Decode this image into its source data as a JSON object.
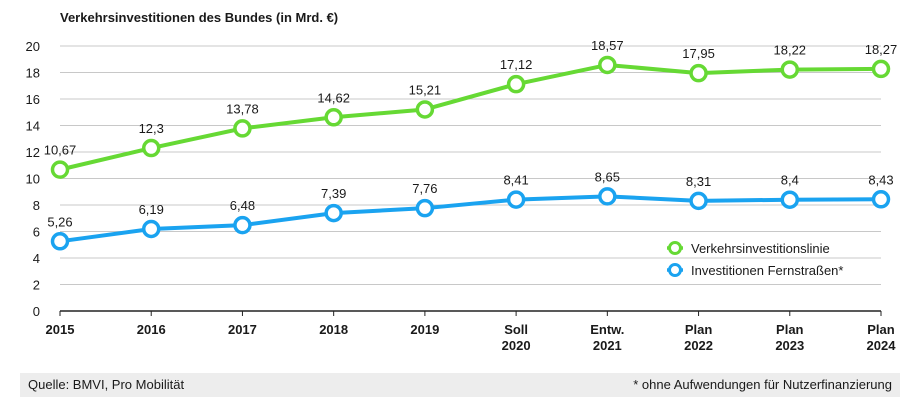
{
  "footer": {
    "source": "Quelle: BMVI, Pro Mobilität",
    "note": "* ohne Aufwendungen für Nutzerfinanzierung"
  },
  "colors": {
    "green": "#66d934",
    "blue": "#1aa3f0",
    "grid": "#c8c8c8"
  },
  "chart_data": {
    "type": "line",
    "title": "Verkehrsinvestitionen des Bundes (in Mrd. €)",
    "xlabel": "",
    "ylabel": "",
    "categories": [
      [
        "2015"
      ],
      [
        "2016"
      ],
      [
        "2017"
      ],
      [
        "2018"
      ],
      [
        "2019"
      ],
      [
        "Soll",
        "2020"
      ],
      [
        "Entw.",
        "2021"
      ],
      [
        "Plan",
        "2022"
      ],
      [
        "Plan",
        "2023"
      ],
      [
        "Plan",
        "2024"
      ]
    ],
    "ylim": [
      0,
      20
    ],
    "yticks": [
      0,
      2,
      4,
      6,
      8,
      10,
      12,
      14,
      16,
      18,
      20
    ],
    "grid": true,
    "legend_position": "bottom-right",
    "series": [
      {
        "name": "Verkehrsinvestitionslinie",
        "color": "#66d934",
        "values": [
          10.67,
          12.3,
          13.78,
          14.62,
          15.21,
          17.12,
          18.57,
          17.95,
          18.22,
          18.27
        ],
        "labels": [
          "10,67",
          "12,3",
          "13,78",
          "14,62",
          "15,21",
          "17,12",
          "18,57",
          "17,95",
          "18,22",
          "18,27"
        ]
      },
      {
        "name": "Investitionen Fernstraßen*",
        "color": "#1aa3f0",
        "values": [
          5.26,
          6.19,
          6.48,
          7.39,
          7.76,
          8.41,
          8.65,
          8.31,
          8.4,
          8.43
        ],
        "labels": [
          "5,26",
          "6,19",
          "6,48",
          "7,39",
          "7,76",
          "8,41",
          "8,65",
          "8,31",
          "8,4",
          "8,43"
        ]
      }
    ]
  }
}
